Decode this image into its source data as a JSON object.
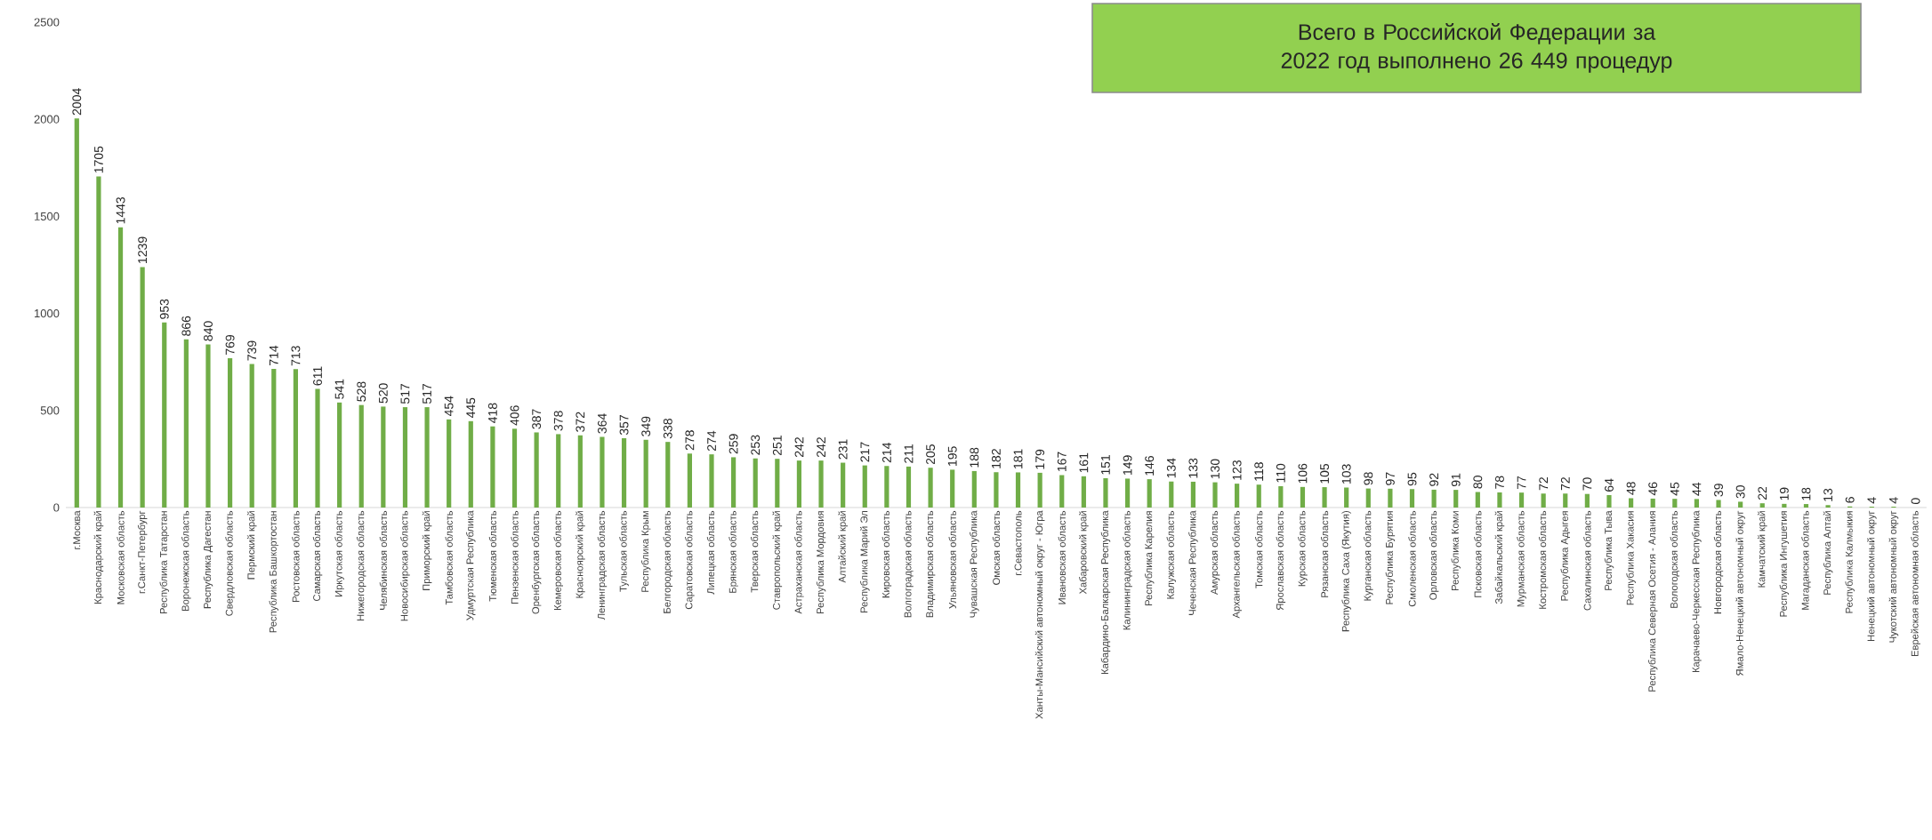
{
  "chart_data": {
    "type": "bar",
    "categories": [
      "г.Москва",
      "Краснодарский край",
      "Московская область",
      "г.Санкт-Петербург",
      "Республика Татарстан",
      "Воронежская область",
      "Республика Дагестан",
      "Свердловская область",
      "Пермский край",
      "Республика Башкортостан",
      "Ростовская область",
      "Самарская область",
      "Иркутская область",
      "Нижегородская область",
      "Челябинская область",
      "Новосибирская область",
      "Приморский край",
      "Тамбовская область",
      "Удмуртская Республика",
      "Тюменская область",
      "Пензенская область",
      "Оренбургская область",
      "Кемеровская область",
      "Красноярский край",
      "Ленинградская область",
      "Тульская область",
      "Республика Крым",
      "Белгородская область",
      "Саратовская область",
      "Липецкая область",
      "Брянская область",
      "Тверская область",
      "Ставропольский край",
      "Астраханская область",
      "Республика Мордовия",
      "Алтайский край",
      "Республика Марий Эл",
      "Кировская область",
      "Волгоградская область",
      "Владимирская область",
      "Ульяновская область",
      "Чувашская Республика",
      "Омская область",
      "г.Севастополь",
      "Ханты-Мансийский автономный округ - Югра",
      "Ивановская область",
      "Хабаровский край",
      "Кабардино-Балкарская Республика",
      "Калининградская область",
      "Республика Карелия",
      "Калужская область",
      "Чеченская Республика",
      "Амурская область",
      "Архангельская область",
      "Томская область",
      "Ярославская область",
      "Курская область",
      "Рязанская область",
      "Республика Саха (Якутия)",
      "Курганская область",
      "Республика Бурятия",
      "Смоленская область",
      "Орловская область",
      "Республика Коми",
      "Псковская область",
      "Забайкальский край",
      "Мурманская область",
      "Костромская область",
      "Республика Адыгея",
      "Сахалинская область",
      "Республика Тыва",
      "Республика Хакасия",
      "Республика Северная Осетия - Алания",
      "Вологодская область",
      "Карачаево-Черкесская Республика",
      "Новгородская область",
      "Ямало-Ненецкий автономный округ",
      "Камчатский край",
      "Республика Ингушетия",
      "Магаданская область",
      "Республика Алтай",
      "Республика Калмыкия",
      "Ненецкий автономный округ",
      "Чукотский автономный округ",
      "Еврейская автономная область"
    ],
    "values": [
      2004,
      1705,
      1443,
      1239,
      953,
      866,
      840,
      769,
      739,
      714,
      713,
      611,
      541,
      528,
      520,
      517,
      517,
      454,
      445,
      418,
      406,
      387,
      378,
      372,
      364,
      357,
      349,
      338,
      278,
      274,
      259,
      253,
      251,
      242,
      242,
      231,
      217,
      214,
      211,
      205,
      195,
      188,
      182,
      181,
      179,
      167,
      161,
      151,
      149,
      146,
      134,
      133,
      130,
      123,
      118,
      110,
      106,
      105,
      103,
      98,
      97,
      95,
      92,
      91,
      80,
      78,
      77,
      72,
      72,
      70,
      64,
      48,
      46,
      45,
      44,
      39,
      30,
      22,
      19,
      18,
      13,
      6,
      4,
      4,
      0
    ],
    "color": "#70ad47",
    "ylim": [
      0,
      2500
    ],
    "yticks": [
      0,
      500,
      1000,
      1500,
      2000,
      2500
    ],
    "data_labels": true,
    "annotations": [
      "Всего в Российской Федерации за 2022 год выполнено 26 449 процедур"
    ]
  }
}
